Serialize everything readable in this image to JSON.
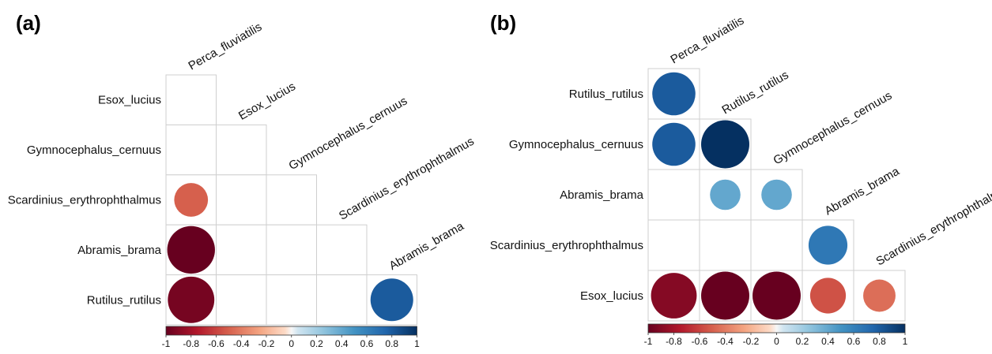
{
  "chart_data": [
    {
      "panel_label": "(a)",
      "type": "heatmap",
      "shape": "lower-triangle circle correlogram",
      "rows": [
        "Esox_lucius",
        "Gymnocephalus_cernuus",
        "Scardinius_erythrophthalmus",
        "Abramis_brama",
        "Rutilus_rutilus"
      ],
      "columns": [
        "Perca_fluviatilis",
        "Esox_lucius",
        "Gymnocephalus_cernuus",
        "Scardinius_erythrophthalmus",
        "Abramis_brama"
      ],
      "values": [
        [
          null
        ],
        [
          null,
          null
        ],
        [
          -0.5,
          null,
          null
        ],
        [
          -1.0,
          null,
          null,
          null
        ],
        [
          -0.95,
          null,
          null,
          null,
          0.8
        ]
      ],
      "colorbar": {
        "range": [
          -1,
          1
        ],
        "ticks": [
          "-1",
          "-0.8",
          "-0.6",
          "-0.4",
          "-0.2",
          "0",
          "0.2",
          "0.4",
          "0.6",
          "0.8",
          "1"
        ]
      }
    },
    {
      "panel_label": "(b)",
      "type": "heatmap",
      "shape": "lower-triangle circle correlogram",
      "rows": [
        "Rutilus_rutilus",
        "Gymnocephalus_cernuus",
        "Abramis_brama",
        "Scardinius_erythrophthalmus",
        "Esox_lucius"
      ],
      "columns": [
        "Perca_fluviatilis",
        "Rutilus_rutilus",
        "Gymnocephalus_cernuus",
        "Abramis_brama",
        "Scardinius_erythrophthalmus"
      ],
      "values": [
        [
          0.8
        ],
        [
          0.8,
          1.0
        ],
        [
          null,
          0.4,
          0.4
        ],
        [
          null,
          null,
          null,
          0.65
        ],
        [
          -0.9,
          -1.0,
          -1.0,
          -0.55,
          -0.45
        ]
      ],
      "colorbar": {
        "range": [
          -1,
          1
        ],
        "ticks": [
          "-1",
          "-0.8",
          "-0.6",
          "-0.4",
          "-0.2",
          "0",
          "0.2",
          "0.4",
          "0.6",
          "0.8",
          "1"
        ]
      }
    }
  ]
}
